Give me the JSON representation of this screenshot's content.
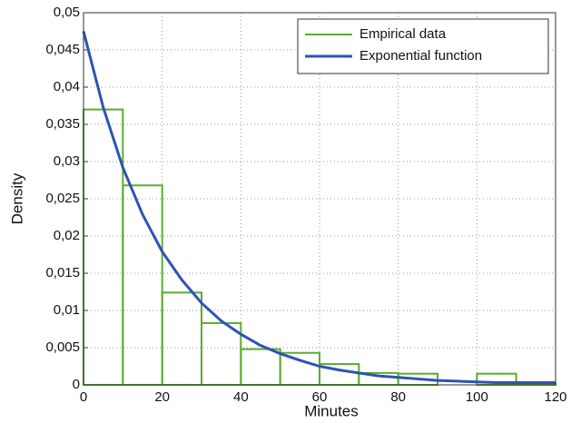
{
  "chart_data": {
    "type": "histogram",
    "xlabel": "Minutes",
    "ylabel": "Density",
    "bins": [
      0,
      10,
      20,
      30,
      40,
      50,
      60,
      70,
      80,
      90,
      100,
      110,
      120
    ],
    "series": [
      {
        "name": "Empirical data",
        "color": "#5aad2e",
        "values": [
          0.037,
          0.0268,
          0.0124,
          0.0083,
          0.0048,
          0.0043,
          0.0028,
          0.0016,
          0.0015,
          0,
          0.0015,
          0.0002
        ]
      },
      {
        "name": "Exponential function",
        "color": "#2f52b5",
        "x": [
          0,
          5,
          10,
          15,
          20,
          25,
          30,
          35,
          40,
          45,
          50,
          55,
          60,
          65,
          70,
          75,
          80,
          85,
          90,
          95,
          100,
          105,
          110,
          115,
          120
        ],
        "values": [
          0.0475,
          0.0373,
          0.0292,
          0.0229,
          0.0179,
          0.0141,
          0.011,
          0.0086,
          0.0068,
          0.0053,
          0.0042,
          0.0033,
          0.0025,
          0.002,
          0.0016,
          0.0012,
          0.001,
          0.0008,
          0.0006,
          0.0005,
          0.0004,
          0.0003,
          0.0003,
          0.0003,
          0.0003
        ]
      }
    ],
    "xlim": [
      0,
      120
    ],
    "xticks": [
      0,
      20,
      40,
      60,
      80,
      100,
      120
    ],
    "ylim": [
      0,
      0.05
    ],
    "yticks": [
      0,
      {
        "value": 0.005,
        "label": "0,005"
      },
      {
        "value": 0.01,
        "label": "0,01"
      },
      {
        "value": 0.015,
        "label": "0,015"
      },
      {
        "value": 0.02,
        "label": "0,02"
      },
      {
        "value": 0.025,
        "label": "0,025"
      },
      {
        "value": 0.03,
        "label": "0,03"
      },
      {
        "value": 0.035,
        "label": "0,035"
      },
      {
        "value": 0.04,
        "label": "0,04"
      },
      {
        "value": 0.045,
        "label": "0,045"
      },
      {
        "value": 0.05,
        "label": "0,05"
      }
    ],
    "grid": true,
    "legend": "top-right"
  }
}
